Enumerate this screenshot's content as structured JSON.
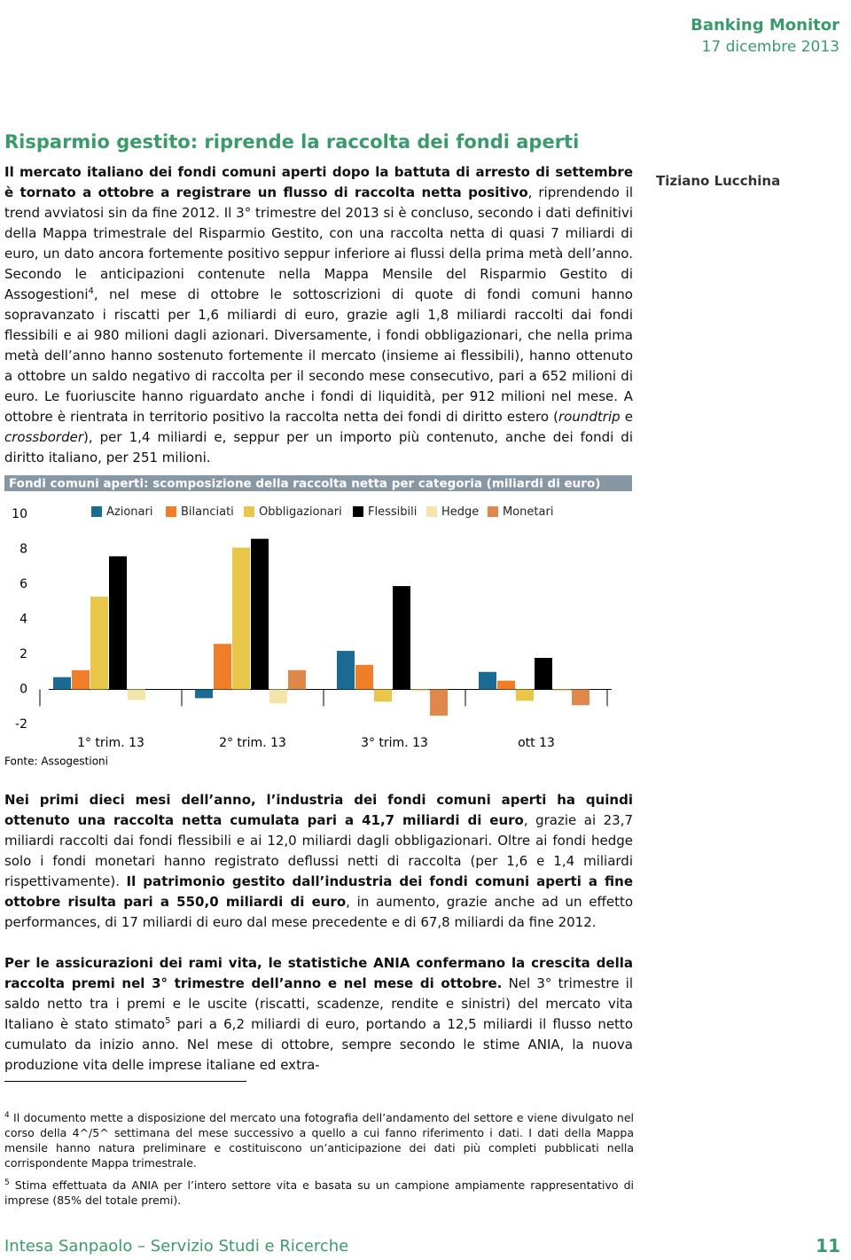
{
  "header": {
    "brand": "Banking Monitor",
    "date": "17 dicembre 2013"
  },
  "title": "Risparmio gestito: riprende la raccolta dei fondi aperti",
  "author": "Tiziano Lucchina",
  "paragraphs": [
    {
      "runs": [
        {
          "text": "Il mercato italiano dei fondi comuni aperti dopo la battuta di arresto di settembre è tornato a ottobre a registrare un flusso di raccolta netta positivo",
          "bold": true
        },
        {
          "text": ", riprendendo il trend avviatosi sin da fine 2012. Il 3° trimestre del 2013 si è concluso, secondo i dati definitivi della Mappa trimestrale del Risparmio Gestito, con una raccolta netta di quasi 7 miliardi di euro, un dato ancora fortemente positivo seppur inferiore ai flussi della prima metà dell’anno. Secondo le anticipazioni contenute nella Mappa Mensile del Risparmio Gestito di Assogestioni"
        },
        {
          "text": "4",
          "sup": true
        },
        {
          "text": ", nel mese di ottobre le sottoscrizioni di quote di fondi comuni hanno sopravanzato i riscatti per 1,6 miliardi di euro, grazie agli 1,8 miliardi raccolti dai fondi flessibili e ai 980 milioni dagli azionari. Diversamente, i fondi obbligazionari, che nella prima metà dell’anno hanno sostenuto fortemente il mercato (insieme ai flessibili), hanno ottenuto a ottobre un saldo negativo di raccolta per il secondo mese consecutivo, pari a 652 milioni di euro. Le fuoriuscite hanno riguardato anche i fondi di liquidità, per 912 milioni nel mese. A ottobre è rientrata in territorio positivo la raccolta netta dei fondi di diritto estero ("
        },
        {
          "text": "roundtrip",
          "italic": true
        },
        {
          "text": " e "
        },
        {
          "text": "crossborder",
          "italic": true
        },
        {
          "text": "), per 1,4 miliardi e, seppur per un importo più contenuto, anche dei fondi di diritto italiano, per 251 milioni."
        }
      ]
    },
    {
      "runs": [
        {
          "text": "Nei primi dieci mesi dell’anno, l’industria dei fondi comuni aperti ha quindi ottenuto una raccolta netta cumulata pari a 41,7 miliardi di euro",
          "bold": true
        },
        {
          "text": ", grazie ai 23,7 miliardi raccolti dai fondi flessibili e ai 12,0 miliardi dagli obbligazionari. Oltre ai fondi hedge solo i fondi monetari hanno registrato deflussi netti di raccolta (per 1,6 e 1,4 miliardi rispettivamente). "
        },
        {
          "text": "Il patrimonio gestito dall’industria dei fondi comuni aperti a fine ottobre risulta pari a 550,0 miliardi di euro",
          "bold": true
        },
        {
          "text": ", in aumento, grazie anche ad un effetto performances, di 17 miliardi di euro dal mese precedente e di 67,8 miliardi da fine 2012."
        }
      ]
    },
    {
      "runs": [
        {
          "text": "Per le assicurazioni dei rami vita, le statistiche ANIA confermano la crescita della raccolta premi nel 3° trimestre dell’anno e nel mese di ottobre.",
          "bold": true
        },
        {
          "text": " Nel 3° trimestre il saldo netto tra i premi e le uscite (riscatti, scadenze, rendite e sinistri) del mercato vita Italiano è stato stimato"
        },
        {
          "text": "5",
          "sup": true
        },
        {
          "text": " pari a 6,2 miliardi di euro, portando a 12,5 miliardi il flusso netto cumulato da inizio anno. Nel mese di ottobre, sempre secondo le stime ANIA, la nuova produzione vita delle imprese italiane ed extra-"
        }
      ]
    }
  ],
  "chart_data": {
    "type": "bar",
    "title": "Fondi comuni aperti: scomposizione della raccolta netta per categoria (miliardi di euro)",
    "source": "Fonte: Assogestioni",
    "categories": [
      "1° trim. 13",
      "2° trim. 13",
      "3° trim. 13",
      "ott 13"
    ],
    "series": [
      {
        "name": "Azionari",
        "color": "#1a6a94",
        "values": [
          0.7,
          -0.5,
          2.2,
          1.0
        ]
      },
      {
        "name": "Bilanciati",
        "color": "#f07d28",
        "values": [
          1.1,
          2.6,
          1.4,
          0.5
        ]
      },
      {
        "name": "Obbligazionari",
        "color": "#e8c64a",
        "values": [
          5.3,
          8.1,
          -0.7,
          -0.65
        ]
      },
      {
        "name": "Flessibili",
        "color": "#000000",
        "values": [
          7.6,
          8.6,
          5.9,
          1.8
        ]
      },
      {
        "name": "Hedge",
        "color": "#f3e4aa",
        "values": [
          -0.6,
          -0.8,
          -0.1,
          -0.1
        ]
      },
      {
        "name": "Monetari",
        "color": "#e0884c",
        "values": [
          0,
          1.1,
          -1.5,
          -0.9
        ]
      }
    ],
    "ylim": [
      -2,
      10
    ],
    "yticks": [
      -2,
      0,
      2,
      4,
      6,
      8,
      10
    ],
    "grid": false
  },
  "footnotes": [
    {
      "mark": "4",
      "text": "Il documento mette a disposizione del mercato una fotografia dell’andamento del settore e viene divulgato nel corso della 4^/5^ settimana del mese successivo a quello a cui fanno riferimento i dati. I dati della Mappa mensile hanno natura preliminare e costituiscono un’anticipazione dei dati più completi pubblicati nella corrispondente Mappa trimestrale."
    },
    {
      "mark": "5",
      "text": "Stima effettuata da ANIA per l’intero settore vita e basata su un campione ampiamente rappresentativo di imprese (85% del totale premi)."
    }
  ],
  "footer": {
    "text": "Intesa Sanpaolo – Servizio Studi e Ricerche",
    "page": "11"
  }
}
